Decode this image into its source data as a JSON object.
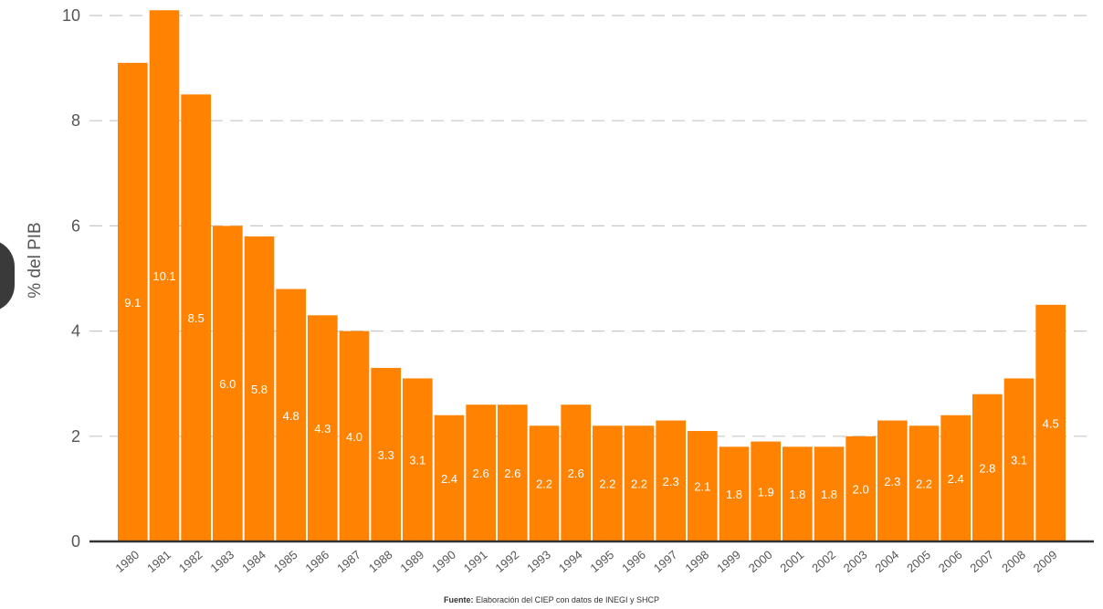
{
  "chart_data": {
    "type": "bar",
    "title": "",
    "ylabel": "% del PIB",
    "xlabel": "",
    "ylim": [
      0,
      10
    ],
    "yticks": [
      0,
      2,
      4,
      6,
      8,
      10
    ],
    "grid": "horizontal dashed",
    "bar_color": "#FF8200",
    "categories": [
      "1980",
      "1981",
      "1982",
      "1983",
      "1984",
      "1985",
      "1986",
      "1987",
      "1988",
      "1989",
      "1990",
      "1991",
      "1992",
      "1993",
      "1994",
      "1995",
      "1996",
      "1997",
      "1998",
      "1999",
      "2000",
      "2001",
      "2002",
      "2003",
      "2004",
      "2005",
      "2006",
      "2007",
      "2008",
      "2009"
    ],
    "values": [
      9.1,
      10.1,
      8.5,
      6.0,
      5.8,
      4.8,
      4.3,
      4.0,
      3.3,
      3.1,
      2.4,
      2.6,
      2.6,
      2.2,
      2.6,
      2.2,
      2.2,
      2.3,
      2.1,
      1.8,
      1.9,
      1.8,
      1.8,
      2.0,
      2.3,
      2.2,
      2.4,
      2.8,
      3.1,
      4.5
    ],
    "data_labels": [
      "9.1",
      "10.1",
      "8.5",
      "6.0",
      "5.8",
      "4.8",
      "4.3",
      "4.0",
      "3.3",
      "3.1",
      "2.4",
      "2.6",
      "2.6",
      "2.2",
      "2.6",
      "2.2",
      "2.2",
      "2.3",
      "2.1",
      "1.8",
      "1.9",
      "1.8",
      "1.8",
      "2.0",
      "2.3",
      "2.2",
      "2.4",
      "2.8",
      "3.1",
      "4.5"
    ]
  },
  "source": {
    "label": "Fuente:",
    "text": "Elaboración del CIEP con datos de INEGI y SHCP"
  }
}
